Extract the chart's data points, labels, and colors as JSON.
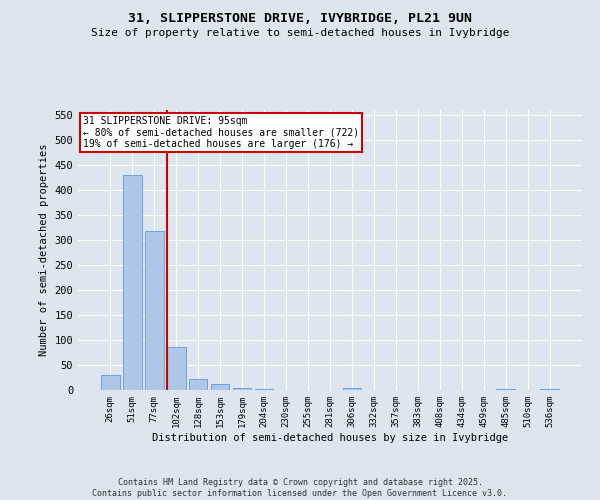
{
  "title_line1": "31, SLIPPERSTONE DRIVE, IVYBRIDGE, PL21 9UN",
  "title_line2": "Size of property relative to semi-detached houses in Ivybridge",
  "categories": [
    "26sqm",
    "51sqm",
    "77sqm",
    "102sqm",
    "128sqm",
    "153sqm",
    "179sqm",
    "204sqm",
    "230sqm",
    "255sqm",
    "281sqm",
    "306sqm",
    "332sqm",
    "357sqm",
    "383sqm",
    "408sqm",
    "434sqm",
    "459sqm",
    "485sqm",
    "510sqm",
    "536sqm"
  ],
  "values": [
    30,
    430,
    318,
    87,
    23,
    12,
    5,
    3,
    0,
    0,
    0,
    5,
    0,
    0,
    0,
    0,
    0,
    0,
    3,
    0,
    3
  ],
  "bar_color": "#aec6e8",
  "bar_edge_color": "#5b9bd5",
  "background_color": "#dde5ef",
  "grid_color": "#ffffff",
  "ylabel": "Number of semi-detached properties",
  "xlabel": "Distribution of semi-detached houses by size in Ivybridge",
  "ylim": [
    0,
    560
  ],
  "yticks": [
    0,
    50,
    100,
    150,
    200,
    250,
    300,
    350,
    400,
    450,
    500,
    550
  ],
  "property_line_x": 2.6,
  "annotation_text": "31 SLIPPERSTONE DRIVE: 95sqm\n← 80% of semi-detached houses are smaller (722)\n19% of semi-detached houses are larger (176) →",
  "annotation_box_color": "#ffffff",
  "annotation_box_edge": "#cc0000",
  "property_line_color": "#cc0000",
  "footer_line1": "Contains HM Land Registry data © Crown copyright and database right 2025.",
  "footer_line2": "Contains public sector information licensed under the Open Government Licence v3.0."
}
